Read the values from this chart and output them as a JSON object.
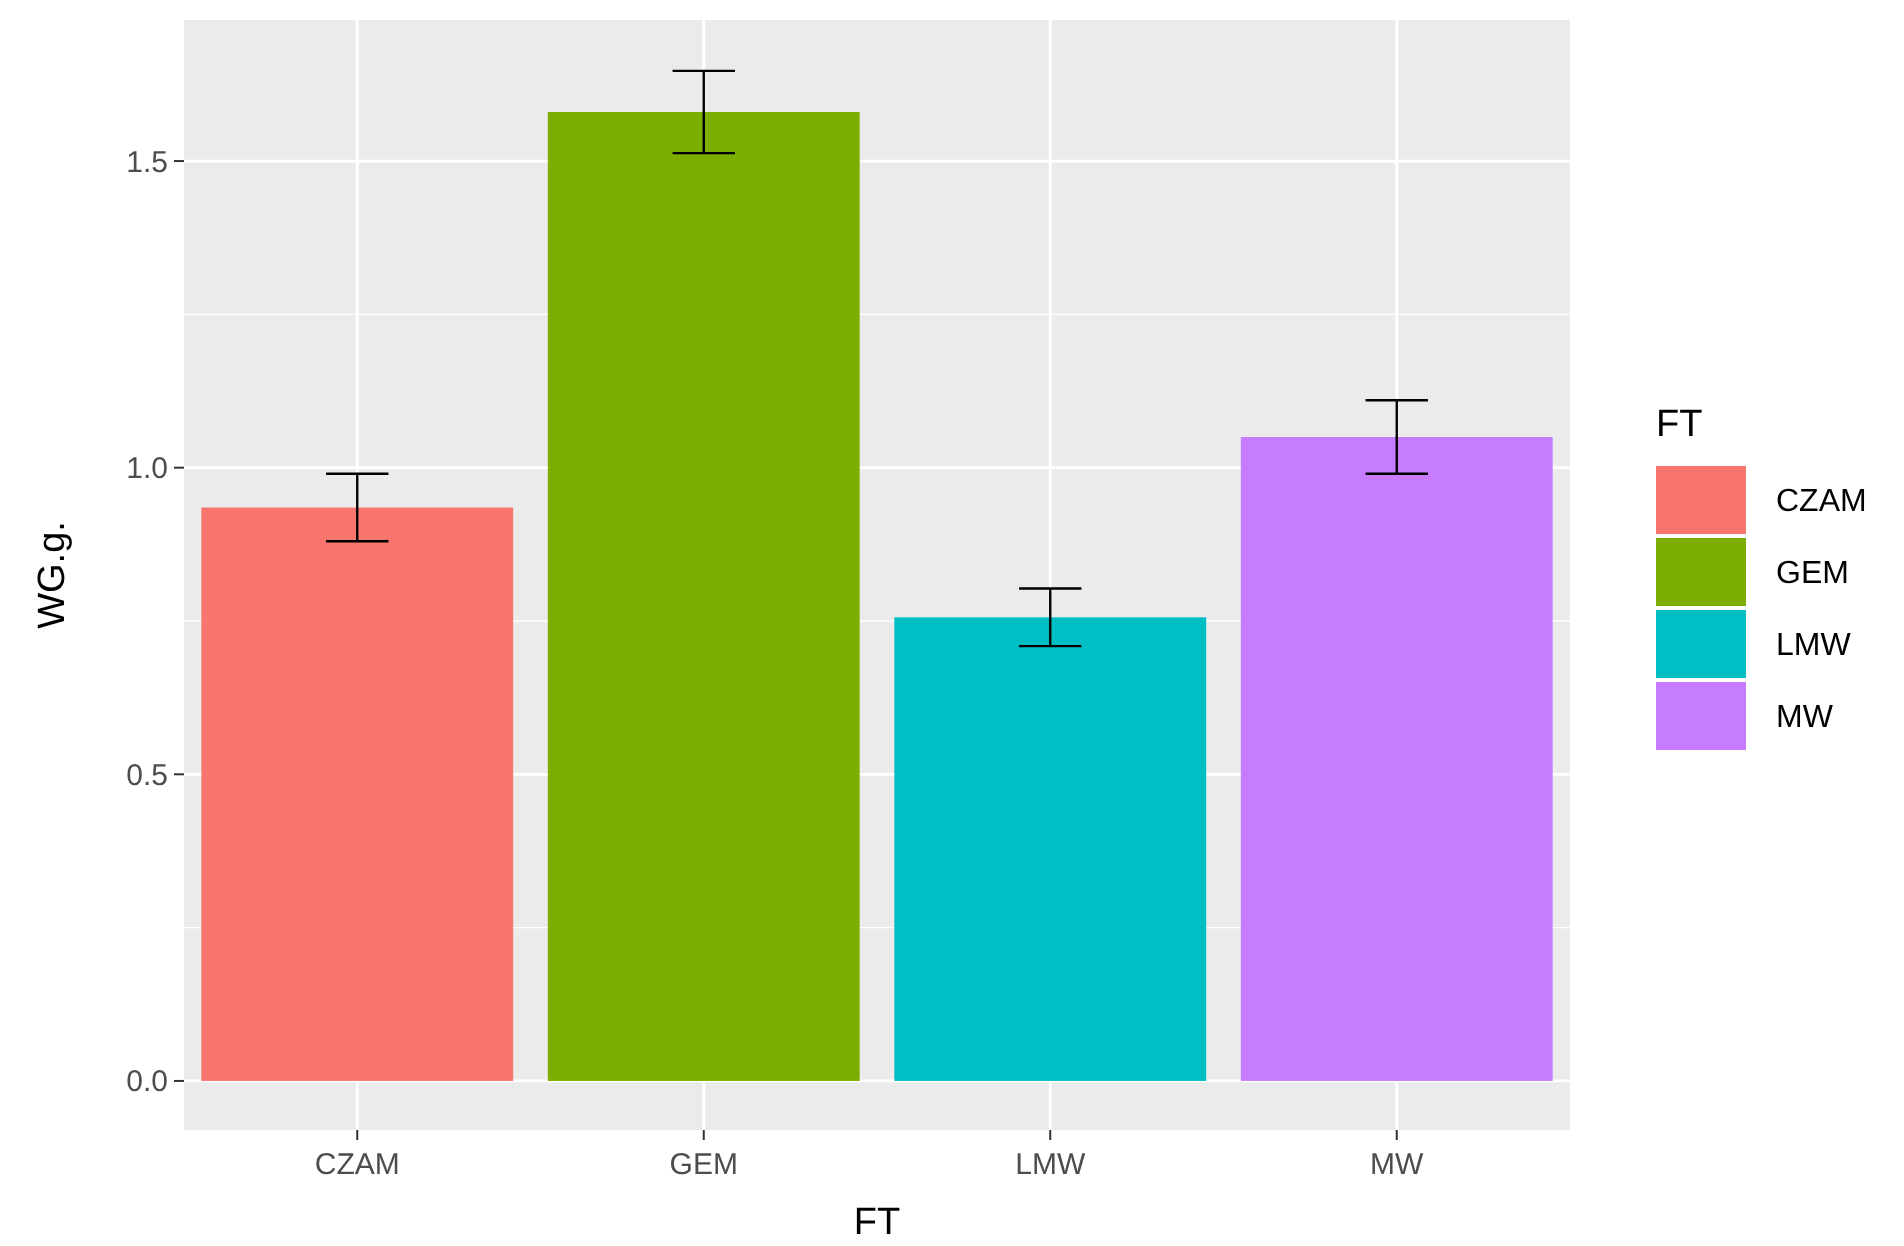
{
  "chart_data": {
    "type": "bar",
    "xlabel": "FT",
    "ylabel": "WG.g.",
    "legend_title": "FT",
    "stacked": true,
    "categories": [
      "CZAM",
      "GEM",
      "LMW",
      "MW"
    ],
    "series": [
      {
        "name": "CZAM",
        "color": "#f8766d",
        "values": [
          0.935,
          null,
          null,
          null
        ],
        "errors": [
          0.055,
          null,
          null,
          null
        ]
      },
      {
        "name": "GEM",
        "color": "#7cae00",
        "values": [
          null,
          1.58,
          null,
          null
        ],
        "errors": [
          null,
          0.067,
          null,
          null
        ]
      },
      {
        "name": "LMW",
        "color": "#00bfc4",
        "values": [
          null,
          null,
          0.756,
          null
        ],
        "errors": [
          null,
          null,
          0.047,
          null
        ]
      },
      {
        "name": "MW",
        "color": "#c77cff",
        "values": [
          null,
          null,
          null,
          1.05
        ],
        "errors": [
          null,
          null,
          null,
          0.06
        ]
      }
    ],
    "ylim": [
      -0.08,
      1.73
    ],
    "yticks": [
      {
        "value": 0,
        "label": "0.0"
      },
      {
        "value": 0.25,
        "label": null
      },
      {
        "value": 0.5,
        "label": "0.5"
      },
      {
        "value": 0.75,
        "label": null
      },
      {
        "value": 1,
        "label": "1.0"
      },
      {
        "value": 1.25,
        "label": null
      },
      {
        "value": 1.5,
        "label": "1.5"
      }
    ],
    "grid": true,
    "legend": "right"
  }
}
